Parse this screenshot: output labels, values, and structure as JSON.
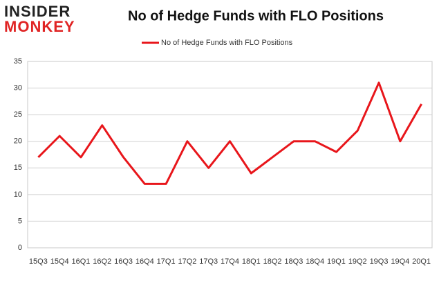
{
  "logo": {
    "top": "INSIDER",
    "bottom": "MONKEY"
  },
  "chart_data": {
    "type": "line",
    "title": "No of Hedge Funds with FLO Positions",
    "categories": [
      "15Q3",
      "15Q4",
      "16Q1",
      "16Q2",
      "16Q3",
      "16Q4",
      "17Q1",
      "17Q2",
      "17Q3",
      "17Q4",
      "18Q1",
      "18Q2",
      "18Q3",
      "18Q4",
      "19Q1",
      "19Q2",
      "19Q3",
      "19Q4",
      "20Q1"
    ],
    "series": [
      {
        "name": "No of Hedge Funds with FLO Positions",
        "color": "#e8161b",
        "values": [
          17,
          21,
          17,
          23,
          17,
          12,
          12,
          20,
          15,
          20,
          14,
          17,
          20,
          20,
          18,
          22,
          31,
          20,
          27
        ]
      }
    ],
    "ylim": [
      0,
      35
    ],
    "yticks": [
      0,
      5,
      10,
      15,
      20,
      25,
      30,
      35
    ],
    "grid": true,
    "legend": "top"
  }
}
